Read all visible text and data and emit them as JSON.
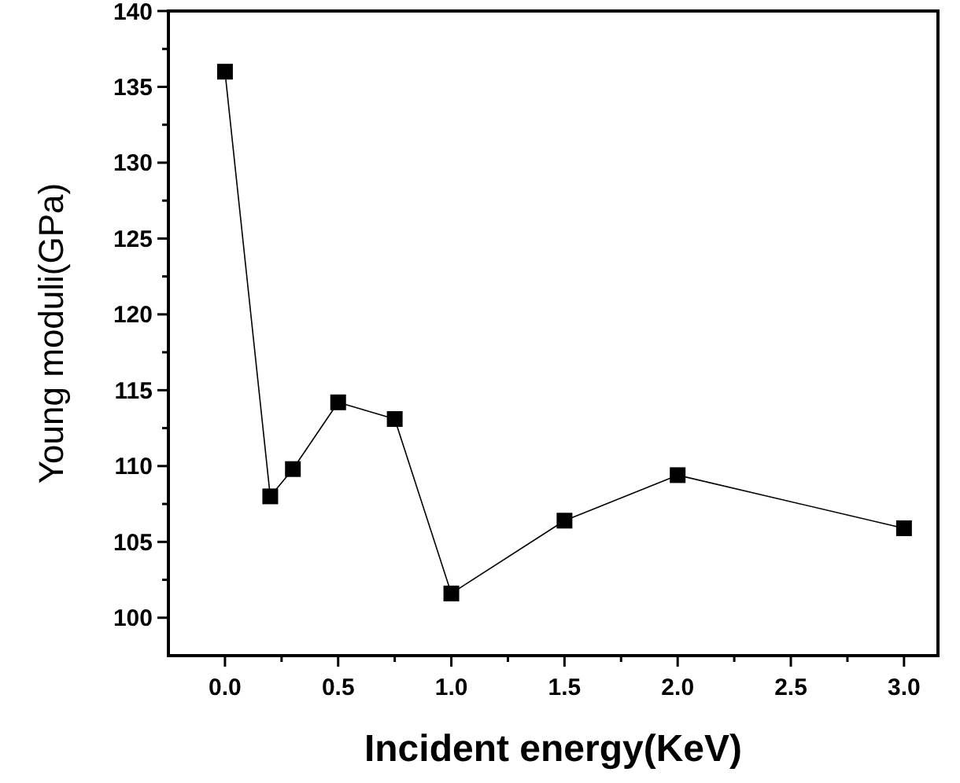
{
  "chart_data": {
    "type": "line",
    "xlabel": "Incident energy(KeV)",
    "ylabel": "Young moduli(GPa)",
    "x": [
      0,
      0.2,
      0.3,
      0.5,
      0.75,
      1.0,
      1.5,
      2.0,
      3.0
    ],
    "series": [
      {
        "color": "#000000",
        "values": [
          136,
          108,
          109.8,
          114.2,
          113.1,
          101.6,
          106.4,
          109.4,
          105.9
        ]
      }
    ],
    "xlim": [
      -0.25,
      3.15
    ],
    "xticks": [
      {
        "value": 0,
        "label": "0.0"
      },
      {
        "value": 0.25,
        "label": null
      },
      {
        "value": 0.5,
        "label": "0.5"
      },
      {
        "value": 0.75,
        "label": null
      },
      {
        "value": 1,
        "label": "1.0"
      },
      {
        "value": 1.25,
        "label": null
      },
      {
        "value": 1.5,
        "label": "1.5"
      },
      {
        "value": 1.75,
        "label": null
      },
      {
        "value": 2,
        "label": "2.0"
      },
      {
        "value": 2.25,
        "label": null
      },
      {
        "value": 2.5,
        "label": "2.5"
      },
      {
        "value": 2.75,
        "label": null
      },
      {
        "value": 3,
        "label": "3.0"
      }
    ],
    "ylim": [
      97.5,
      140
    ],
    "yticks": [
      100,
      {
        "value": 102.5,
        "label": null
      },
      105,
      {
        "value": 107.5,
        "label": null
      },
      110,
      {
        "value": 112.5,
        "label": null
      },
      115,
      {
        "value": 117.5,
        "label": null
      },
      120,
      {
        "value": 122.5,
        "label": null
      },
      125,
      {
        "value": 127.5,
        "label": null
      },
      130,
      {
        "value": 132.5,
        "label": null
      },
      135,
      {
        "value": 137.5,
        "label": null
      },
      140
    ],
    "marker": "square",
    "line_style": "solid",
    "grid": false
  }
}
